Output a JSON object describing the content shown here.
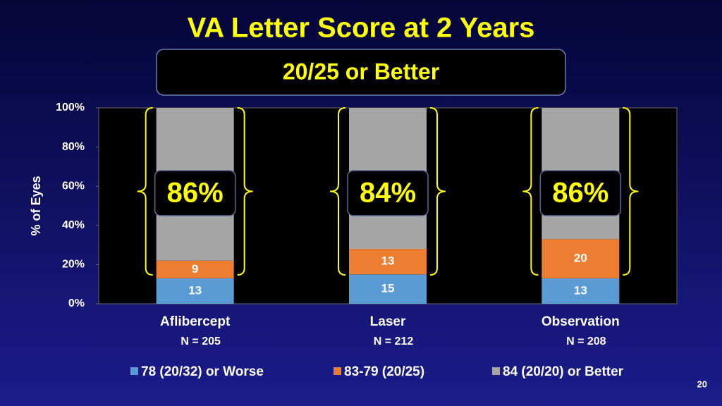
{
  "chart_data": {
    "type": "stacked-bar",
    "title": "VA Letter Score at 2 Years",
    "subtitle": "20/25 or Better",
    "y_label": "% of Eyes",
    "categories": [
      "Aflibercept",
      "Laser",
      "Observation"
    ],
    "category_notes": [
      "N = 205",
      "N = 212",
      "N = 208"
    ],
    "series": [
      {
        "name": "78 (20/32) or Worse",
        "color": "#5b9bd5",
        "values": [
          13,
          15,
          13
        ]
      },
      {
        "name": "83-79 (20/25)",
        "color": "#ed7d31",
        "values": [
          9,
          13,
          20
        ]
      },
      {
        "name": "84 (20/20) or Better",
        "color": "#a5a5a5",
        "values": [
          78,
          72,
          67
        ]
      }
    ],
    "labeled_series": [
      0,
      1
    ],
    "callouts": [
      "86%",
      "84%",
      "86%"
    ],
    "ylim": [
      0,
      100
    ],
    "yticks": [
      {
        "value": 0,
        "label": "0%"
      },
      {
        "value": 20,
        "label": "20%"
      },
      {
        "value": 40,
        "label": "40%"
      },
      {
        "value": 60,
        "label": "60%"
      },
      {
        "value": 80,
        "label": "80%"
      },
      {
        "value": 100,
        "label": "100%"
      }
    ],
    "legend": "bottom"
  },
  "slide_number": "20"
}
